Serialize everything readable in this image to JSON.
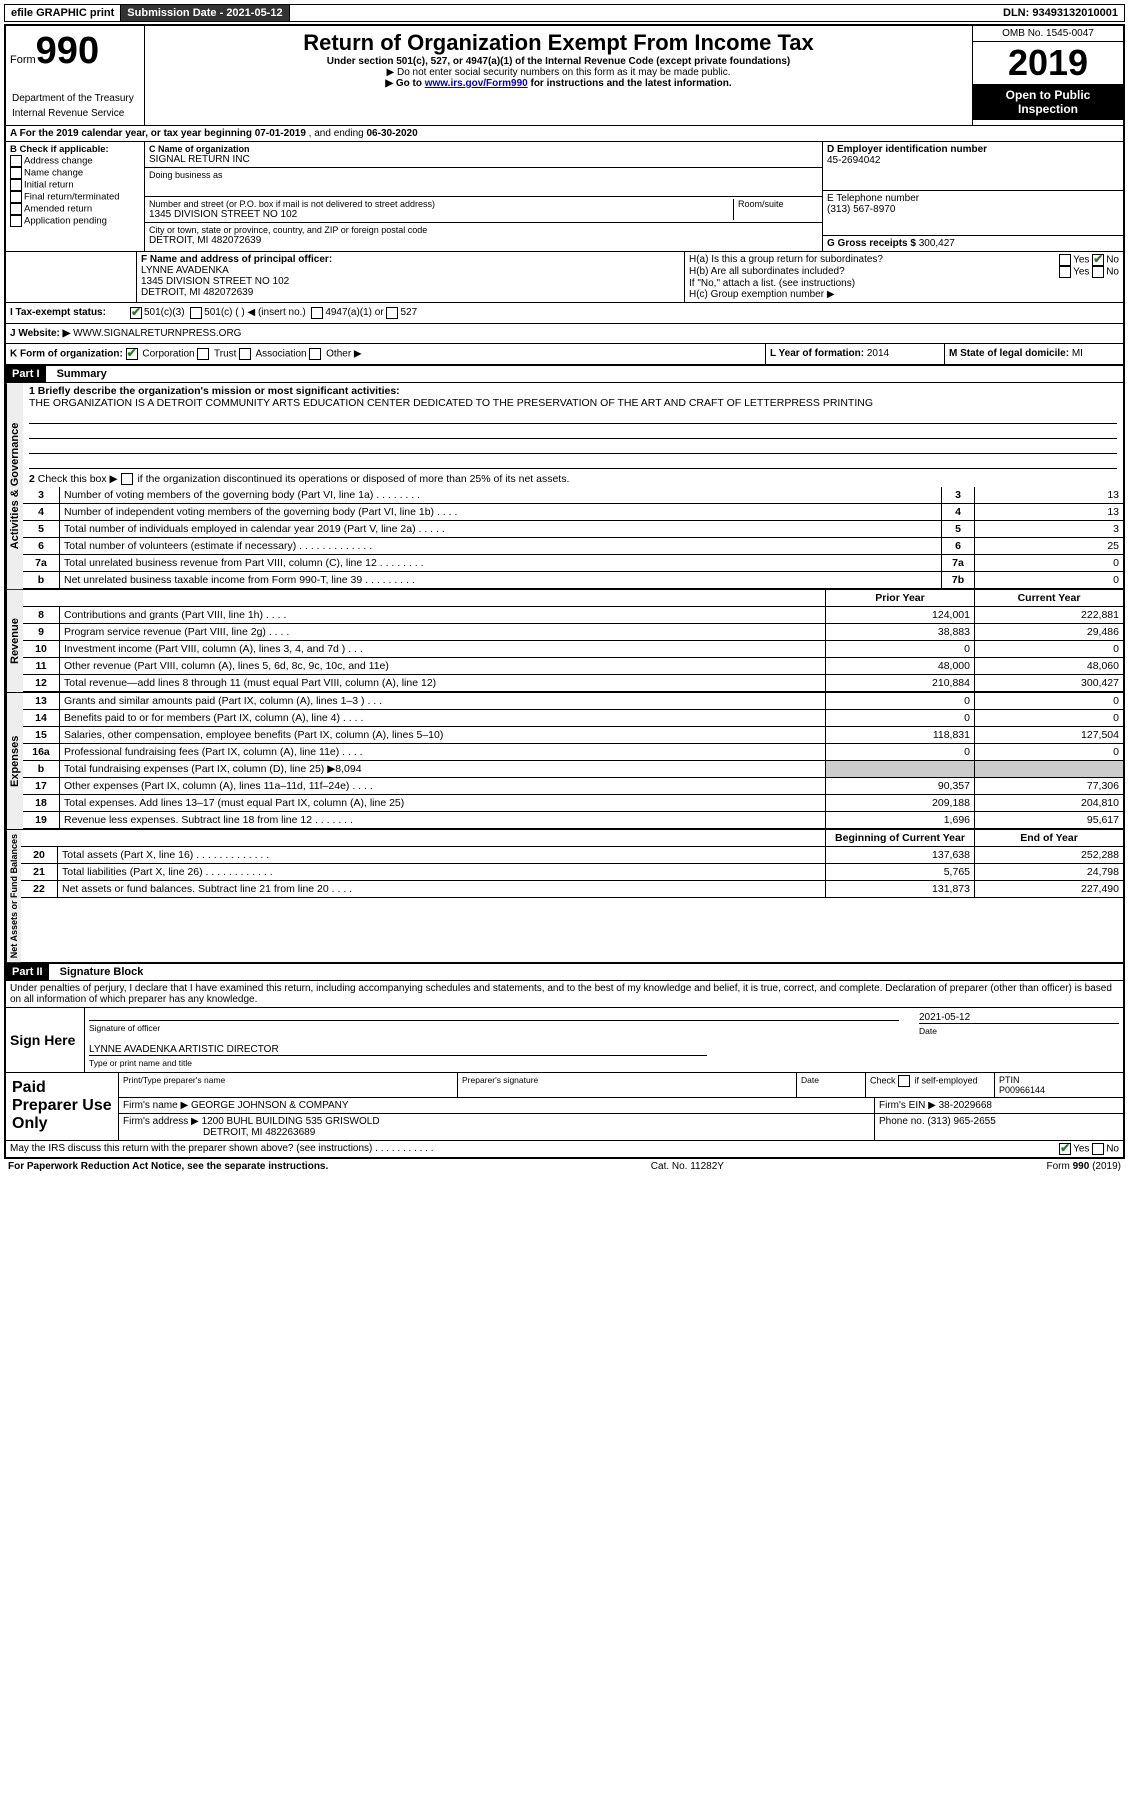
{
  "topbar": {
    "efile": "efile GRAPHIC print",
    "sub_label": "Submission Date - 2021-05-12",
    "dln": "DLN: 93493132010001"
  },
  "header": {
    "form_word": "Form",
    "form_num": "990",
    "title": "Return of Organization Exempt From Income Tax",
    "line1": "Under section 501(c), 527, or 4947(a)(1) of the Internal Revenue Code (except private foundations)",
    "line2": "▶ Do not enter social security numbers on this form as it may be made public.",
    "line3_pre": "▶ Go to ",
    "line3_link": "www.irs.gov/Form990",
    "line3_post": " for instructions and the latest information.",
    "omb": "OMB No. 1545-0047",
    "year": "2019",
    "open": "Open to Public Inspection",
    "dept": "Department of the Treasury",
    "irs": "Internal Revenue Service"
  },
  "rowA": {
    "text_pre": "A For the 2019 calendar year, or tax year beginning ",
    "begin": "07-01-2019",
    "mid": " , and ending ",
    "end": "06-30-2020"
  },
  "B": {
    "label": "B Check if applicable:",
    "opts": [
      "Address change",
      "Name change",
      "Initial return",
      "Final return/terminated",
      "Amended return",
      "Application pending"
    ]
  },
  "C": {
    "name_label": "C Name of organization",
    "name": "SIGNAL RETURN INC",
    "dba_label": "Doing business as",
    "addr_label": "Number and street (or P.O. box if mail is not delivered to street address)",
    "room_label": "Room/suite",
    "addr": "1345 DIVISION STREET NO 102",
    "city_label": "City or town, state or province, country, and ZIP or foreign postal code",
    "city": "DETROIT, MI  482072639"
  },
  "D": {
    "label": "D Employer identification number",
    "val": "45-2694042"
  },
  "E": {
    "label": "E Telephone number",
    "val": "(313) 567-8970"
  },
  "G": {
    "label": "G Gross receipts $ ",
    "val": "300,427"
  },
  "F": {
    "label": "F  Name and address of principal officer:",
    "name": "LYNNE AVADENKA",
    "addr": "1345 DIVISION STREET NO 102",
    "city": "DETROIT, MI  482072639"
  },
  "H": {
    "a": "H(a)  Is this a group return for subordinates?",
    "b": "H(b)  Are all subordinates included?",
    "b_note": "If \"No,\" attach a list. (see instructions)",
    "c": "H(c)  Group exemption number ▶",
    "yes": "Yes",
    "no": "No"
  },
  "I": {
    "label": "I  Tax-exempt status:",
    "o1": "501(c)(3)",
    "o2": "501(c) (  ) ◀ (insert no.)",
    "o3": "4947(a)(1) or",
    "o4": "527"
  },
  "J": {
    "label": "J  Website: ▶",
    "val": "WWW.SIGNALRETURNPRESS.ORG"
  },
  "K": {
    "label": "K Form of organization:",
    "o1": "Corporation",
    "o2": "Trust",
    "o3": "Association",
    "o4": "Other ▶"
  },
  "L": {
    "label": "L Year of formation: ",
    "val": "2014"
  },
  "M": {
    "label": "M State of legal domicile: ",
    "val": "MI"
  },
  "partI": {
    "num": "Part I",
    "title": "Summary"
  },
  "summary": {
    "q1": "1  Briefly describe the organization's mission or most significant activities:",
    "mission": "THE ORGANIZATION IS A DETROIT COMMUNITY ARTS EDUCATION CENTER DEDICATED TO THE PRESERVATION OF THE ART AND CRAFT OF LETTERPRESS PRINTING",
    "q2": "2  Check this box ▶        if the organization discontinued its operations or disposed of more than 25% of its net assets.",
    "vert1": "Activities & Governance",
    "vert2": "Revenue",
    "vert3": "Expenses",
    "vert4": "Net Assets or Fund Balances",
    "rows_gov": [
      {
        "n": "3",
        "t": "Number of voting members of the governing body (Part VI, line 1a)  .   .   .   .   .   .   .   .",
        "b": "3",
        "v": "13"
      },
      {
        "n": "4",
        "t": "Number of independent voting members of the governing body (Part VI, line 1b)   .   .   .   .",
        "b": "4",
        "v": "13"
      },
      {
        "n": "5",
        "t": "Total number of individuals employed in calendar year 2019 (Part V, line 2a)   .   .   .   .   .",
        "b": "5",
        "v": "3"
      },
      {
        "n": "6",
        "t": "Total number of volunteers (estimate if necessary)   .   .   .   .   .   .   .   .   .   .   .   .   .",
        "b": "6",
        "v": "25"
      },
      {
        "n": "7a",
        "t": "Total unrelated business revenue from Part VIII, column (C), line 12   .   .   .   .   .   .   .   .",
        "b": "7a",
        "v": "0"
      },
      {
        "n": "b",
        "t": "Net unrelated business taxable income from Form 990-T, line 39   .   .   .   .   .   .   .   .   .",
        "b": "7b",
        "v": "0"
      }
    ],
    "hdr_prior": "Prior Year",
    "hdr_cur": "Current Year",
    "rows_rev": [
      {
        "n": "8",
        "t": "Contributions and grants (Part VIII, line 1h)   .   .   .   .",
        "p": "124,001",
        "c": "222,881"
      },
      {
        "n": "9",
        "t": "Program service revenue (Part VIII, line 2g)   .   .   .   .",
        "p": "38,883",
        "c": "29,486"
      },
      {
        "n": "10",
        "t": "Investment income (Part VIII, column (A), lines 3, 4, and 7d )   .   .   .",
        "p": "0",
        "c": "0"
      },
      {
        "n": "11",
        "t": "Other revenue (Part VIII, column (A), lines 5, 6d, 8c, 9c, 10c, and 11e)",
        "p": "48,000",
        "c": "48,060"
      },
      {
        "n": "12",
        "t": "Total revenue—add lines 8 through 11 (must equal Part VIII, column (A), line 12)",
        "p": "210,884",
        "c": "300,427"
      }
    ],
    "rows_exp": [
      {
        "n": "13",
        "t": "Grants and similar amounts paid (Part IX, column (A), lines 1–3 )   .   .   .",
        "p": "0",
        "c": "0"
      },
      {
        "n": "14",
        "t": "Benefits paid to or for members (Part IX, column (A), line 4)   .   .   .   .",
        "p": "0",
        "c": "0"
      },
      {
        "n": "15",
        "t": "Salaries, other compensation, employee benefits (Part IX, column (A), lines 5–10)",
        "p": "118,831",
        "c": "127,504"
      },
      {
        "n": "16a",
        "t": "Professional fundraising fees (Part IX, column (A), line 11e)   .   .   .   .",
        "p": "0",
        "c": "0"
      },
      {
        "n": "b",
        "t": "Total fundraising expenses (Part IX, column (D), line 25) ▶8,094",
        "p": "",
        "c": "",
        "grey": true
      },
      {
        "n": "17",
        "t": "Other expenses (Part IX, column (A), lines 11a–11d, 11f–24e)   .   .   .   .",
        "p": "90,357",
        "c": "77,306"
      },
      {
        "n": "18",
        "t": "Total expenses. Add lines 13–17 (must equal Part IX, column (A), line 25)",
        "p": "209,188",
        "c": "204,810"
      },
      {
        "n": "19",
        "t": "Revenue less expenses. Subtract line 18 from line 12 .   .   .   .   .   .   .",
        "p": "1,696",
        "c": "95,617"
      }
    ],
    "hdr_beg": "Beginning of Current Year",
    "hdr_end": "End of Year",
    "rows_net": [
      {
        "n": "20",
        "t": "Total assets (Part X, line 16)  .   .   .   .   .   .   .   .   .   .   .   .   .",
        "p": "137,638",
        "c": "252,288"
      },
      {
        "n": "21",
        "t": "Total liabilities (Part X, line 26)  .   .   .   .   .   .   .   .   .   .   .   .",
        "p": "5,765",
        "c": "24,798"
      },
      {
        "n": "22",
        "t": "Net assets or fund balances. Subtract line 21 from line 20   .   .   .   .",
        "p": "131,873",
        "c": "227,490"
      }
    ]
  },
  "partII": {
    "num": "Part II",
    "title": "Signature Block"
  },
  "sig": {
    "decl": "Under penalties of perjury, I declare that I have examined this return, including accompanying schedules and statements, and to the best of my knowledge and belief, it is true, correct, and complete. Declaration of preparer (other than officer) is based on all information of which preparer has any knowledge.",
    "here": "Sign Here",
    "sig_label": "Signature of officer",
    "date_label": "Date",
    "date": "2021-05-12",
    "name_title": "LYNNE AVADENKA  ARTISTIC DIRECTOR",
    "type_label": "Type or print name and title"
  },
  "paid": {
    "label": "Paid Preparer Use Only",
    "col1": "Print/Type preparer's name",
    "col2": "Preparer's signature",
    "col3": "Date",
    "col4a": "Check",
    "col4b": "if self-employed",
    "ptin_l": "PTIN",
    "ptin": "P00966144",
    "firm_l": "Firm's name  ▶",
    "firm": "GEORGE JOHNSON & COMPANY",
    "ein_l": "Firm's EIN ▶ ",
    "ein": "38-2029668",
    "addr_l": "Firm's address ▶",
    "addr1": "1200 BUHL BUILDING 535 GRISWOLD",
    "addr2": "DETROIT, MI  482263689",
    "phone_l": "Phone no. ",
    "phone": "(313) 965-2655",
    "discuss": "May the IRS discuss this return with the preparer shown above? (see instructions)   .   .   .   .   .   .   .   .   .   .   .",
    "yes": "Yes",
    "no": "No"
  },
  "footer": {
    "left": "For Paperwork Reduction Act Notice, see the separate instructions.",
    "mid": "Cat. No. 11282Y",
    "right": "Form 990 (2019)"
  }
}
